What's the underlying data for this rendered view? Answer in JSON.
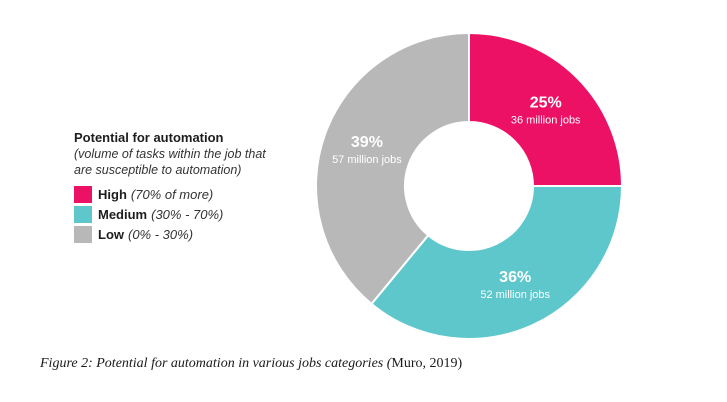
{
  "chart_data": {
    "type": "pie",
    "variant": "donut",
    "legend": {
      "title": "Potential for automation",
      "subtitle_lines": [
        "(volume of tasks within the job that",
        "are susceptible to automation)"
      ],
      "position": "left"
    },
    "categories": [
      "High",
      "Medium",
      "Low"
    ],
    "ranges": [
      "(70% of more)",
      "(30% - 70%)",
      "(0% - 30%)"
    ],
    "values": [
      25,
      36,
      39
    ],
    "percent_labels": [
      "25%",
      "36%",
      "39%"
    ],
    "jobs_labels": [
      "36 million jobs",
      "52 million jobs",
      "57 million jobs"
    ],
    "colors": [
      "#ec1164",
      "#5ec7cc",
      "#b8b8b8"
    ]
  },
  "caption": {
    "text": "Figure 2: Potential for automation in various jobs categories (",
    "source": "Muro, 2019)"
  }
}
